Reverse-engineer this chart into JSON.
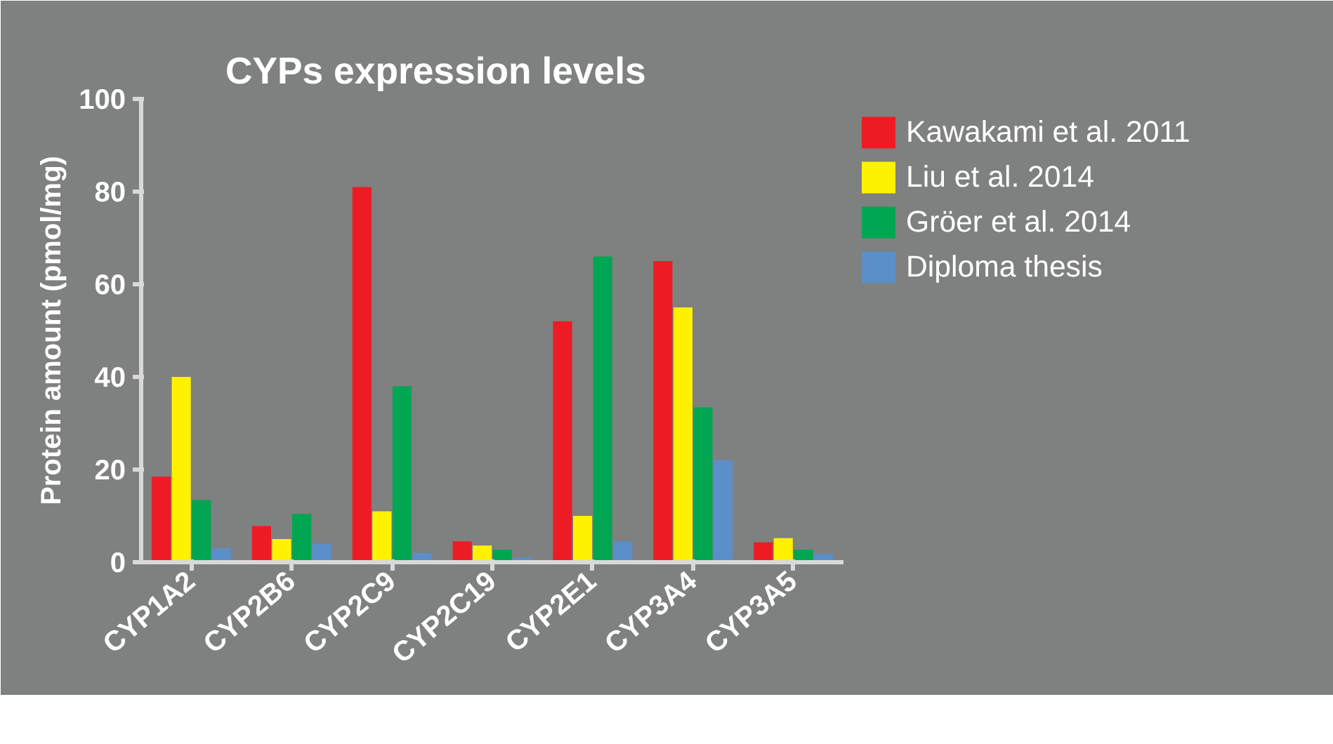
{
  "chart_data": {
    "type": "bar",
    "title": "CYPs expression levels",
    "ylabel": "Protein amount (pmol/mg)",
    "categories": [
      "CYP1A2",
      "CYP2B6",
      "CYP2C9",
      "CYP2C19",
      "CYP2E1",
      "CYP3A4",
      "CYP3A5"
    ],
    "series": [
      {
        "name": "Kawakami et al. 2011",
        "color": "#ed1c24",
        "values": [
          18.5,
          7.8,
          81,
          4.5,
          52,
          65,
          4.3
        ]
      },
      {
        "name": "Liu et al. 2014",
        "color": "#fff200",
        "values": [
          40,
          5,
          11,
          3.6,
          10,
          55,
          5.2
        ]
      },
      {
        "name": "Gröer et al. 2014",
        "color": "#00a651",
        "values": [
          13.4,
          10.4,
          38,
          2.7,
          66,
          33.4,
          2.7
        ]
      },
      {
        "name": "Diploma thesis",
        "color": "#5b8fc9",
        "values": [
          3,
          4,
          2,
          1,
          4.5,
          22,
          1.8
        ]
      }
    ],
    "ylim": [
      0,
      100
    ],
    "yticks": [
      0,
      20,
      40,
      60,
      80,
      100
    ],
    "legend": "top right"
  }
}
